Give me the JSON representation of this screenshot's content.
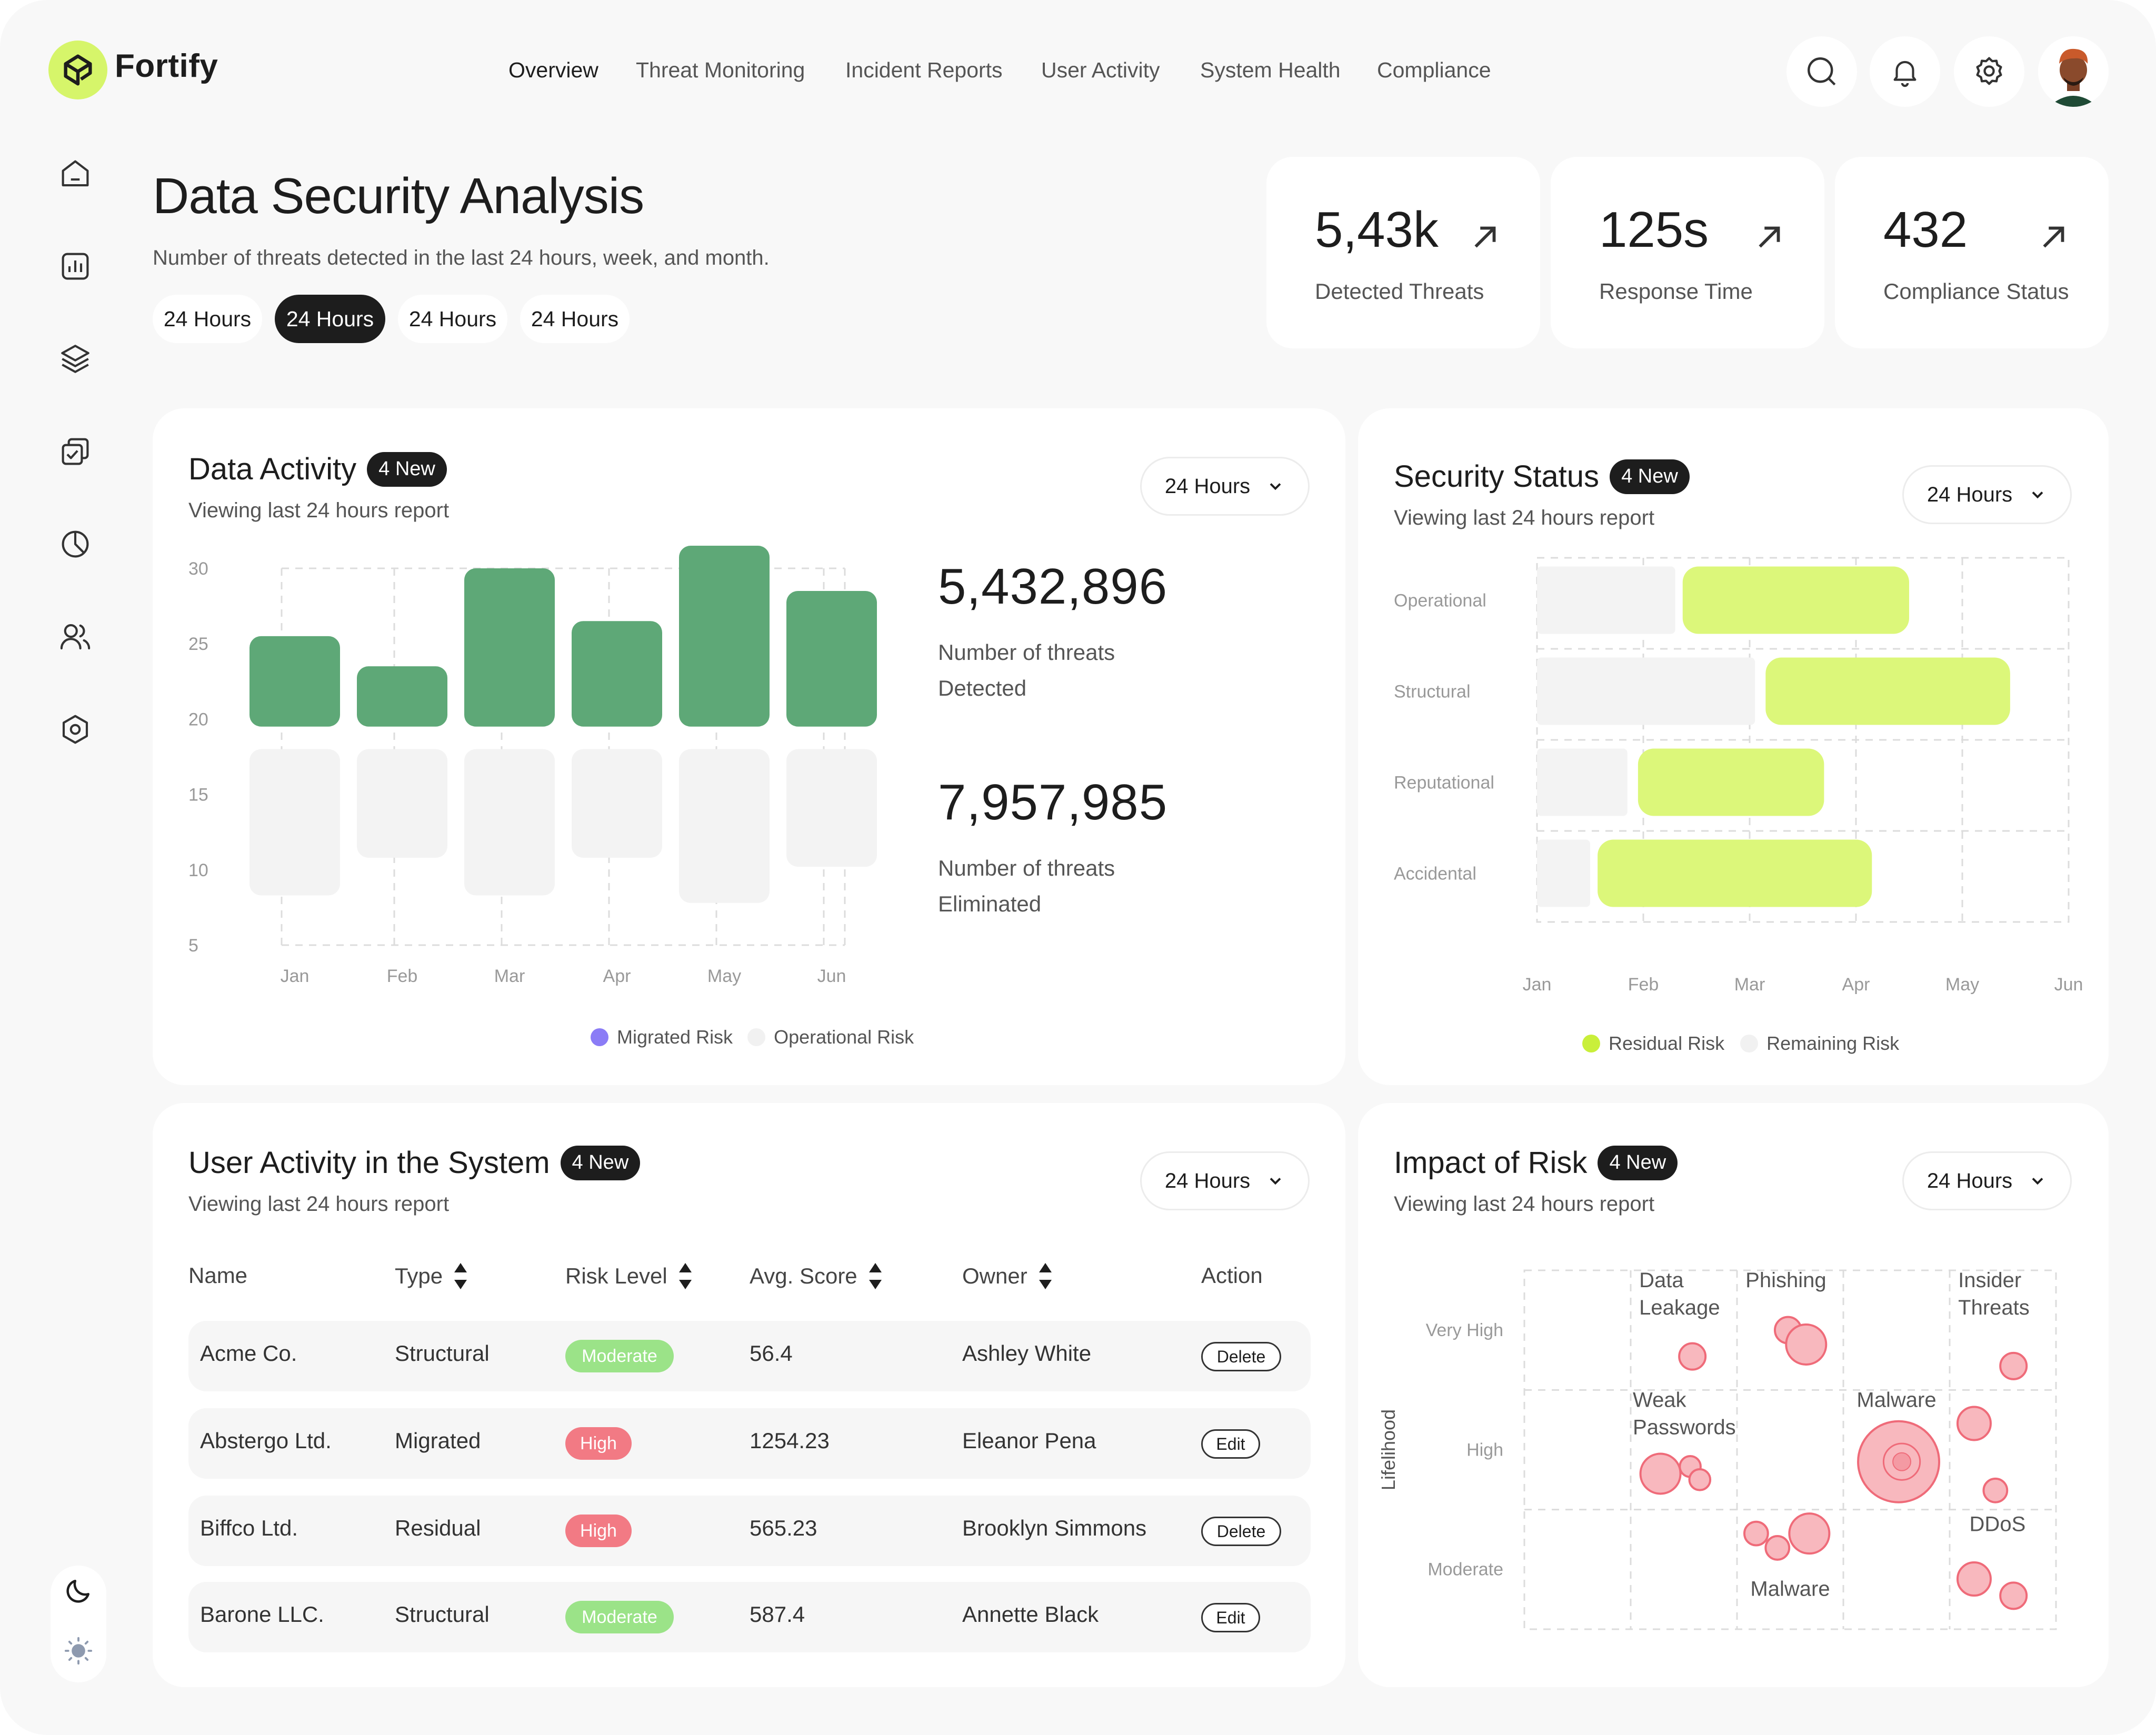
{
  "app": {
    "name": "Fortify"
  },
  "nav": {
    "items": [
      {
        "label": "Overview",
        "active": true
      },
      {
        "label": "Threat Monitoring",
        "active": false
      },
      {
        "label": "Incident Reports",
        "active": false
      },
      {
        "label": "User Activity",
        "active": false
      },
      {
        "label": "System Health",
        "active": false
      },
      {
        "label": "Compliance",
        "active": false
      }
    ]
  },
  "header_actions": [
    "search-icon",
    "bell-icon",
    "gear-icon",
    "avatar"
  ],
  "sidebar": {
    "icons": [
      "home-icon",
      "bar-chart-icon",
      "layers-icon",
      "checklist-icon",
      "pie-chart-icon",
      "users-icon",
      "hexagon-settings-icon"
    ],
    "theme": [
      "moon-icon",
      "sun-icon"
    ]
  },
  "page": {
    "title": "Data Security Analysis",
    "subtitle": "Number of threats detected in the last 24 hours, week, and month.",
    "ranges": [
      {
        "label": "24 Hours",
        "active": false
      },
      {
        "label": "24 Hours",
        "active": true
      },
      {
        "label": "24 Hours",
        "active": false
      },
      {
        "label": "24 Hours",
        "active": false
      }
    ]
  },
  "stats": [
    {
      "value": "5,43k",
      "label": "Detected Threats"
    },
    {
      "value": "125s",
      "label": "Response Time"
    },
    {
      "value": "432",
      "label": "Compliance Status"
    }
  ],
  "data_activity": {
    "title": "Data Activity",
    "badge": "4 New",
    "subtitle": "Viewing last 24 hours report",
    "range": "24 Hours",
    "metric1": {
      "value": "5,432,896",
      "label": "Number of threats Detected"
    },
    "metric2": {
      "value": "7,957,985",
      "label": "Number of threats Eliminated"
    }
  },
  "security_status": {
    "title": "Security Status",
    "badge": "4 New",
    "subtitle": "Viewing last 24 hours report",
    "range": "24 Hours"
  },
  "user_activity": {
    "title": "User Activity in the System",
    "badge": "4 New",
    "subtitle": "Viewing last 24 hours report",
    "range": "24 Hours",
    "columns": [
      "Name",
      "Type",
      "Risk Level",
      "Avg. Score",
      "Owner",
      "Action"
    ],
    "rows": [
      {
        "name": "Acme Co.",
        "type": "Structural",
        "risk": "Moderate",
        "score": "56.4",
        "owner": "Ashley White",
        "action": "Delete"
      },
      {
        "name": "Abstergo Ltd.",
        "type": "Migrated",
        "risk": "High",
        "score": "1254.23",
        "owner": "Eleanor Pena",
        "action": "Edit"
      },
      {
        "name": "Biffco  Ltd.",
        "type": "Residual",
        "risk": "High",
        "score": "565.23",
        "owner": "Brooklyn Simmons",
        "action": "Delete"
      },
      {
        "name": "Barone LLC.",
        "type": "Structural",
        "risk": "Moderate",
        "score": "587.4",
        "owner": "Annette Black",
        "action": "Edit"
      }
    ]
  },
  "impact_of_risk": {
    "title": "Impact of Risk",
    "badge": "4 New",
    "subtitle": "Viewing last 24 hours report",
    "range": "24 Hours"
  },
  "colors": {
    "accent_lime": "#d9f77b",
    "green_bar": "#5ea877",
    "migrated_purple": "#8b7cf6",
    "risk_red": "#f27a84",
    "bubble_pink": "#f7b3b9"
  },
  "chart_data": [
    {
      "type": "bar",
      "title": "Data Activity",
      "categories": [
        "Jan",
        "Feb",
        "Mar",
        "Apr",
        "May",
        "Jun"
      ],
      "ylim": [
        5,
        30
      ],
      "yticks": [
        30,
        25,
        20,
        15,
        10,
        5
      ],
      "series": [
        {
          "name": "Migrated Risk",
          "values": [
            [
              19.5,
              25.5
            ],
            [
              19.5,
              23.5
            ],
            [
              19.5,
              30.0
            ],
            [
              19.5,
              26.5
            ],
            [
              19.5,
              31.5
            ],
            [
              19.5,
              28.5
            ]
          ]
        },
        {
          "name": "Operational Risk",
          "values": [
            [
              8.3,
              18.0
            ],
            [
              10.8,
              18.0
            ],
            [
              8.3,
              18.0
            ],
            [
              10.8,
              18.0
            ],
            [
              7.8,
              18.0
            ],
            [
              10.2,
              18.0
            ]
          ]
        }
      ],
      "legend": [
        "Migrated Risk",
        "Operational Risk"
      ]
    },
    {
      "type": "bar",
      "orientation": "horizontal",
      "title": "Security Status",
      "categories": [
        "Operational",
        "Structural",
        "Reputational",
        "Accidental"
      ],
      "x": [
        "Jan",
        "Feb",
        "Mar",
        "Apr",
        "May",
        "Jun"
      ],
      "series": [
        {
          "name": "Remaining Risk",
          "values": [
            [
              0.0,
              1.3
            ],
            [
              0.0,
              2.05
            ],
            [
              0.0,
              0.85
            ],
            [
              0.0,
              0.5
            ]
          ]
        },
        {
          "name": "Residual Risk",
          "values": [
            [
              1.37,
              3.5
            ],
            [
              2.15,
              4.45
            ],
            [
              0.95,
              2.7
            ],
            [
              0.57,
              3.15
            ]
          ]
        }
      ],
      "legend": [
        "Residual Risk",
        "Remaining Risk"
      ]
    },
    {
      "type": "scatter",
      "title": "Impact of Risk",
      "ylabel": "Lifelihood",
      "y_categories": [
        "Very High",
        "High",
        "Moderate"
      ],
      "grid_columns": 5,
      "points": [
        {
          "label": "Data Leakage",
          "col": 1,
          "row": 0,
          "bubbles": [
            {
              "dx": 0.58,
              "dy": 0.72,
              "size": 1
            }
          ]
        },
        {
          "label": "Phishing",
          "col": 2,
          "row": 0,
          "bubbles": [
            {
              "dx": 0.48,
              "dy": 0.5,
              "size": 1
            },
            {
              "dx": 0.65,
              "dy": 0.62,
              "size": 2
            }
          ]
        },
        {
          "label": "Insider Threats",
          "col": 4,
          "row": 0,
          "bubbles": [
            {
              "dx": 0.6,
              "dy": 0.8,
              "size": 1
            }
          ]
        },
        {
          "label": "Weak Passwords",
          "col": 1,
          "row": 1,
          "bubbles": [
            {
              "dx": 0.28,
              "dy": 0.7,
              "size": 2
            },
            {
              "dx": 0.56,
              "dy": 0.64,
              "size": 0.6
            },
            {
              "dx": 0.65,
              "dy": 0.75,
              "size": 0.6
            }
          ]
        },
        {
          "label": "Malware",
          "col": 3,
          "row": 1,
          "bubbles": [
            {
              "dx": 0.52,
              "dy": 0.6,
              "size": 5
            }
          ]
        },
        {
          "label": "",
          "col": 4,
          "row": 1,
          "bubbles": [
            {
              "dx": 0.23,
              "dy": 0.28,
              "size": 1.5
            },
            {
              "dx": 0.43,
              "dy": 0.84,
              "size": 0.8
            }
          ]
        },
        {
          "label": "Malware",
          "col": 2,
          "row": 2,
          "bubbles": [
            {
              "dx": 0.18,
              "dy": 0.2,
              "size": 0.8
            },
            {
              "dx": 0.38,
              "dy": 0.32,
              "size": 0.8
            },
            {
              "dx": 0.68,
              "dy": 0.2,
              "size": 2
            }
          ]
        },
        {
          "label": "DDoS",
          "col": 4,
          "row": 2,
          "bubbles": [
            {
              "dx": 0.23,
              "dy": 0.58,
              "size": 1.5
            },
            {
              "dx": 0.6,
              "dy": 0.72,
              "size": 1
            }
          ]
        }
      ]
    }
  ]
}
